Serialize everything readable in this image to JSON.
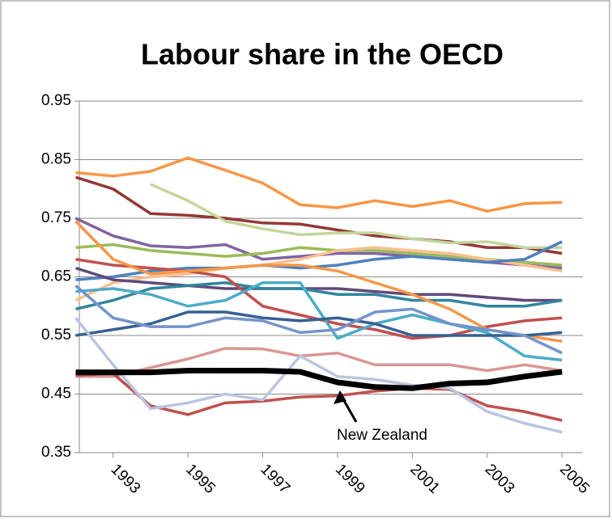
{
  "chart_data": {
    "type": "line",
    "title": "Labour share in the OECD",
    "annotation": "New Zealand",
    "x": [
      1992,
      1993,
      1994,
      1995,
      1996,
      1997,
      1998,
      1999,
      2000,
      2001,
      2002,
      2003,
      2004,
      2005
    ],
    "xlim": [
      1991.6,
      2005.6
    ],
    "xticks": [
      1993,
      1995,
      1997,
      1999,
      2001,
      2003,
      2005
    ],
    "ylim": [
      0.35,
      0.95
    ],
    "yticks": [
      0.35,
      0.45,
      0.55,
      0.65,
      0.75,
      0.85,
      0.95
    ],
    "grid": true,
    "series": [
      {
        "color": "#f79646",
        "values": [
          0.828,
          0.822,
          0.83,
          0.853,
          0.832,
          0.81,
          0.773,
          0.768,
          0.78,
          0.77,
          0.78,
          0.762,
          0.775,
          0.777
        ]
      },
      {
        "color": "#953735",
        "values": [
          0.82,
          0.8,
          0.758,
          0.755,
          0.75,
          0.742,
          0.74,
          0.73,
          0.72,
          0.715,
          0.71,
          0.7,
          0.7,
          0.69
        ]
      },
      {
        "color": "#c3d69b",
        "values": [
          null,
          null,
          0.808,
          0.78,
          0.745,
          0.732,
          0.722,
          0.725,
          0.725,
          0.715,
          0.708,
          0.71,
          0.7,
          0.7
        ]
      },
      {
        "color": "#8064a2",
        "values": [
          0.75,
          0.72,
          0.703,
          0.7,
          0.705,
          0.68,
          0.685,
          0.69,
          0.69,
          0.685,
          0.68,
          0.675,
          0.67,
          0.665
        ]
      },
      {
        "color": "#9bbb59",
        "values": [
          0.7,
          0.705,
          0.695,
          0.69,
          0.685,
          0.69,
          0.7,
          0.695,
          0.695,
          0.69,
          0.685,
          0.68,
          0.675,
          0.67
        ]
      },
      {
        "color": "#fac090",
        "values": [
          0.61,
          0.64,
          0.65,
          0.655,
          0.665,
          0.67,
          0.68,
          0.695,
          0.7,
          0.695,
          0.69,
          0.68,
          0.67,
          0.66
        ]
      },
      {
        "color": "#4f81bd",
        "values": [
          0.645,
          0.65,
          0.66,
          0.665,
          0.665,
          0.67,
          0.665,
          0.67,
          0.68,
          0.685,
          0.68,
          0.675,
          0.68,
          0.71
        ]
      },
      {
        "color": "#60497a",
        "values": [
          0.665,
          0.645,
          0.64,
          0.635,
          0.63,
          0.63,
          0.63,
          0.63,
          0.625,
          0.62,
          0.62,
          0.615,
          0.61,
          0.61
        ]
      },
      {
        "color": "#31859c",
        "values": [
          0.595,
          0.61,
          0.63,
          0.635,
          0.64,
          0.63,
          0.63,
          0.62,
          0.62,
          0.61,
          0.61,
          0.6,
          0.6,
          0.61
        ]
      },
      {
        "color": "#c0504d",
        "values": [
          0.68,
          0.67,
          0.665,
          0.66,
          0.65,
          0.6,
          0.585,
          0.57,
          0.56,
          0.545,
          0.55,
          0.565,
          0.575,
          0.58
        ]
      },
      {
        "color": "#f79646",
        "values": [
          0.745,
          0.68,
          0.655,
          0.66,
          0.665,
          0.67,
          0.67,
          0.66,
          0.64,
          0.62,
          0.595,
          0.56,
          0.55,
          0.54
        ]
      },
      {
        "color": "#4bacc6",
        "values": [
          0.625,
          0.63,
          0.62,
          0.6,
          0.61,
          0.64,
          0.64,
          0.545,
          0.57,
          0.585,
          0.57,
          0.555,
          0.515,
          0.508
        ]
      },
      {
        "color": "#376092",
        "values": [
          0.55,
          0.56,
          0.57,
          0.59,
          0.59,
          0.58,
          0.575,
          0.58,
          0.57,
          0.55,
          0.55,
          0.55,
          0.55,
          0.555
        ]
      },
      {
        "color": "#7394cb",
        "values": [
          0.635,
          0.58,
          0.565,
          0.565,
          0.58,
          0.575,
          0.555,
          0.56,
          0.59,
          0.595,
          0.57,
          0.56,
          0.55,
          0.52
        ]
      },
      {
        "color": "#d99694",
        "values": [
          0.48,
          0.48,
          0.495,
          0.51,
          0.528,
          0.527,
          0.515,
          0.52,
          0.5,
          0.5,
          0.5,
          0.49,
          0.5,
          0.49
        ]
      },
      {
        "color": "#c0504d",
        "values": [
          0.482,
          0.485,
          0.43,
          0.415,
          0.435,
          0.438,
          0.445,
          0.447,
          0.455,
          0.46,
          0.458,
          0.43,
          0.42,
          0.405
        ]
      },
      {
        "color": "#b9c5e0",
        "values": [
          0.58,
          0.5,
          0.425,
          0.435,
          0.45,
          0.44,
          0.515,
          0.48,
          0.475,
          0.465,
          0.46,
          0.42,
          0.4,
          0.385
        ]
      },
      {
        "color": "#000000",
        "width": 7,
        "values": [
          0.487,
          0.487,
          0.487,
          0.49,
          0.49,
          0.49,
          0.488,
          0.47,
          0.462,
          0.46,
          0.468,
          0.47,
          0.48,
          0.488
        ]
      }
    ]
  }
}
